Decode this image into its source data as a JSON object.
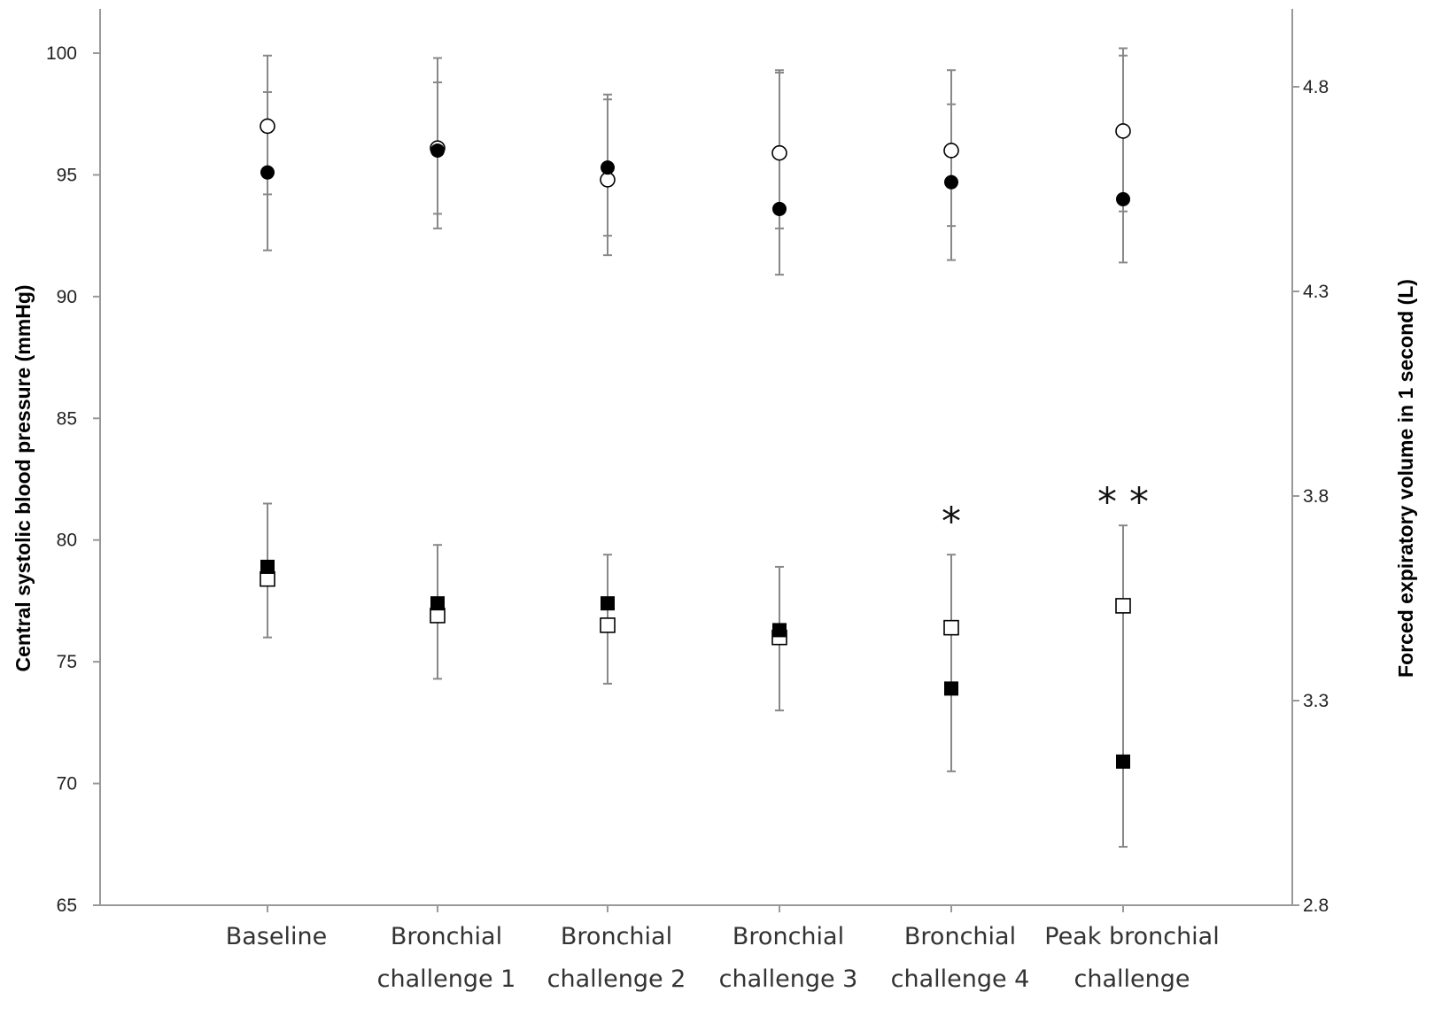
{
  "chart_data": {
    "type": "scatter",
    "categories": [
      [
        "Baseline"
      ],
      [
        "Bronchial",
        "challenge 1"
      ],
      [
        "Bronchial",
        "challenge 2"
      ],
      [
        "Bronchial",
        "challenge 3"
      ],
      [
        "Bronchial",
        "challenge 4"
      ],
      [
        "Peak bronchial",
        "challenge"
      ]
    ],
    "ylabel": "Central systolic blood pressure (mmHg)",
    "y2label": "Forced expiratory volume in 1 second (L)",
    "ylim": [
      65,
      100
    ],
    "y2lim": [
      2.8,
      4.8
    ],
    "yticks": [
      65,
      70,
      75,
      80,
      85,
      90,
      95,
      100
    ],
    "y2ticks": [
      "2.8",
      "3.3",
      "3.8",
      "4.3",
      "4.8"
    ],
    "grid": false,
    "series": [
      {
        "axis": "left",
        "marker": "circle-open",
        "values": [
          97.0,
          96.1,
          94.8,
          95.9,
          96.0,
          96.8
        ],
        "err_low": [
          94.2,
          93.4,
          92.5,
          92.8,
          92.9,
          93.5
        ],
        "err_high": [
          98.4,
          98.8,
          98.3,
          99.2,
          97.9,
          100.2
        ]
      },
      {
        "axis": "left",
        "marker": "circle-filled",
        "values": [
          95.1,
          96.0,
          95.3,
          93.6,
          94.7,
          94.0
        ],
        "err_low": [
          91.9,
          92.8,
          91.7,
          90.9,
          91.5,
          91.4
        ],
        "err_high": [
          99.9,
          99.8,
          98.1,
          99.3,
          99.3,
          99.9
        ]
      },
      {
        "axis": "left",
        "marker": "square-open",
        "values": [
          78.4,
          76.9,
          76.5,
          76.0,
          76.4,
          77.3
        ],
        "err_low": [
          76.0,
          74.3,
          74.1,
          73.0,
          70.5,
          67.4
        ],
        "err_high": [
          81.5,
          79.8,
          79.4,
          78.9,
          79.4,
          80.6
        ]
      },
      {
        "axis": "left",
        "marker": "square-filled",
        "values": [
          78.9,
          77.4,
          77.4,
          76.3,
          73.9,
          70.9
        ],
        "err_low": null,
        "err_high": null
      }
    ],
    "annotations": [
      {
        "category_index": 4,
        "text": "*",
        "y": 81.1
      },
      {
        "category_index": 5,
        "text": "* *",
        "y": 81.9
      }
    ]
  }
}
